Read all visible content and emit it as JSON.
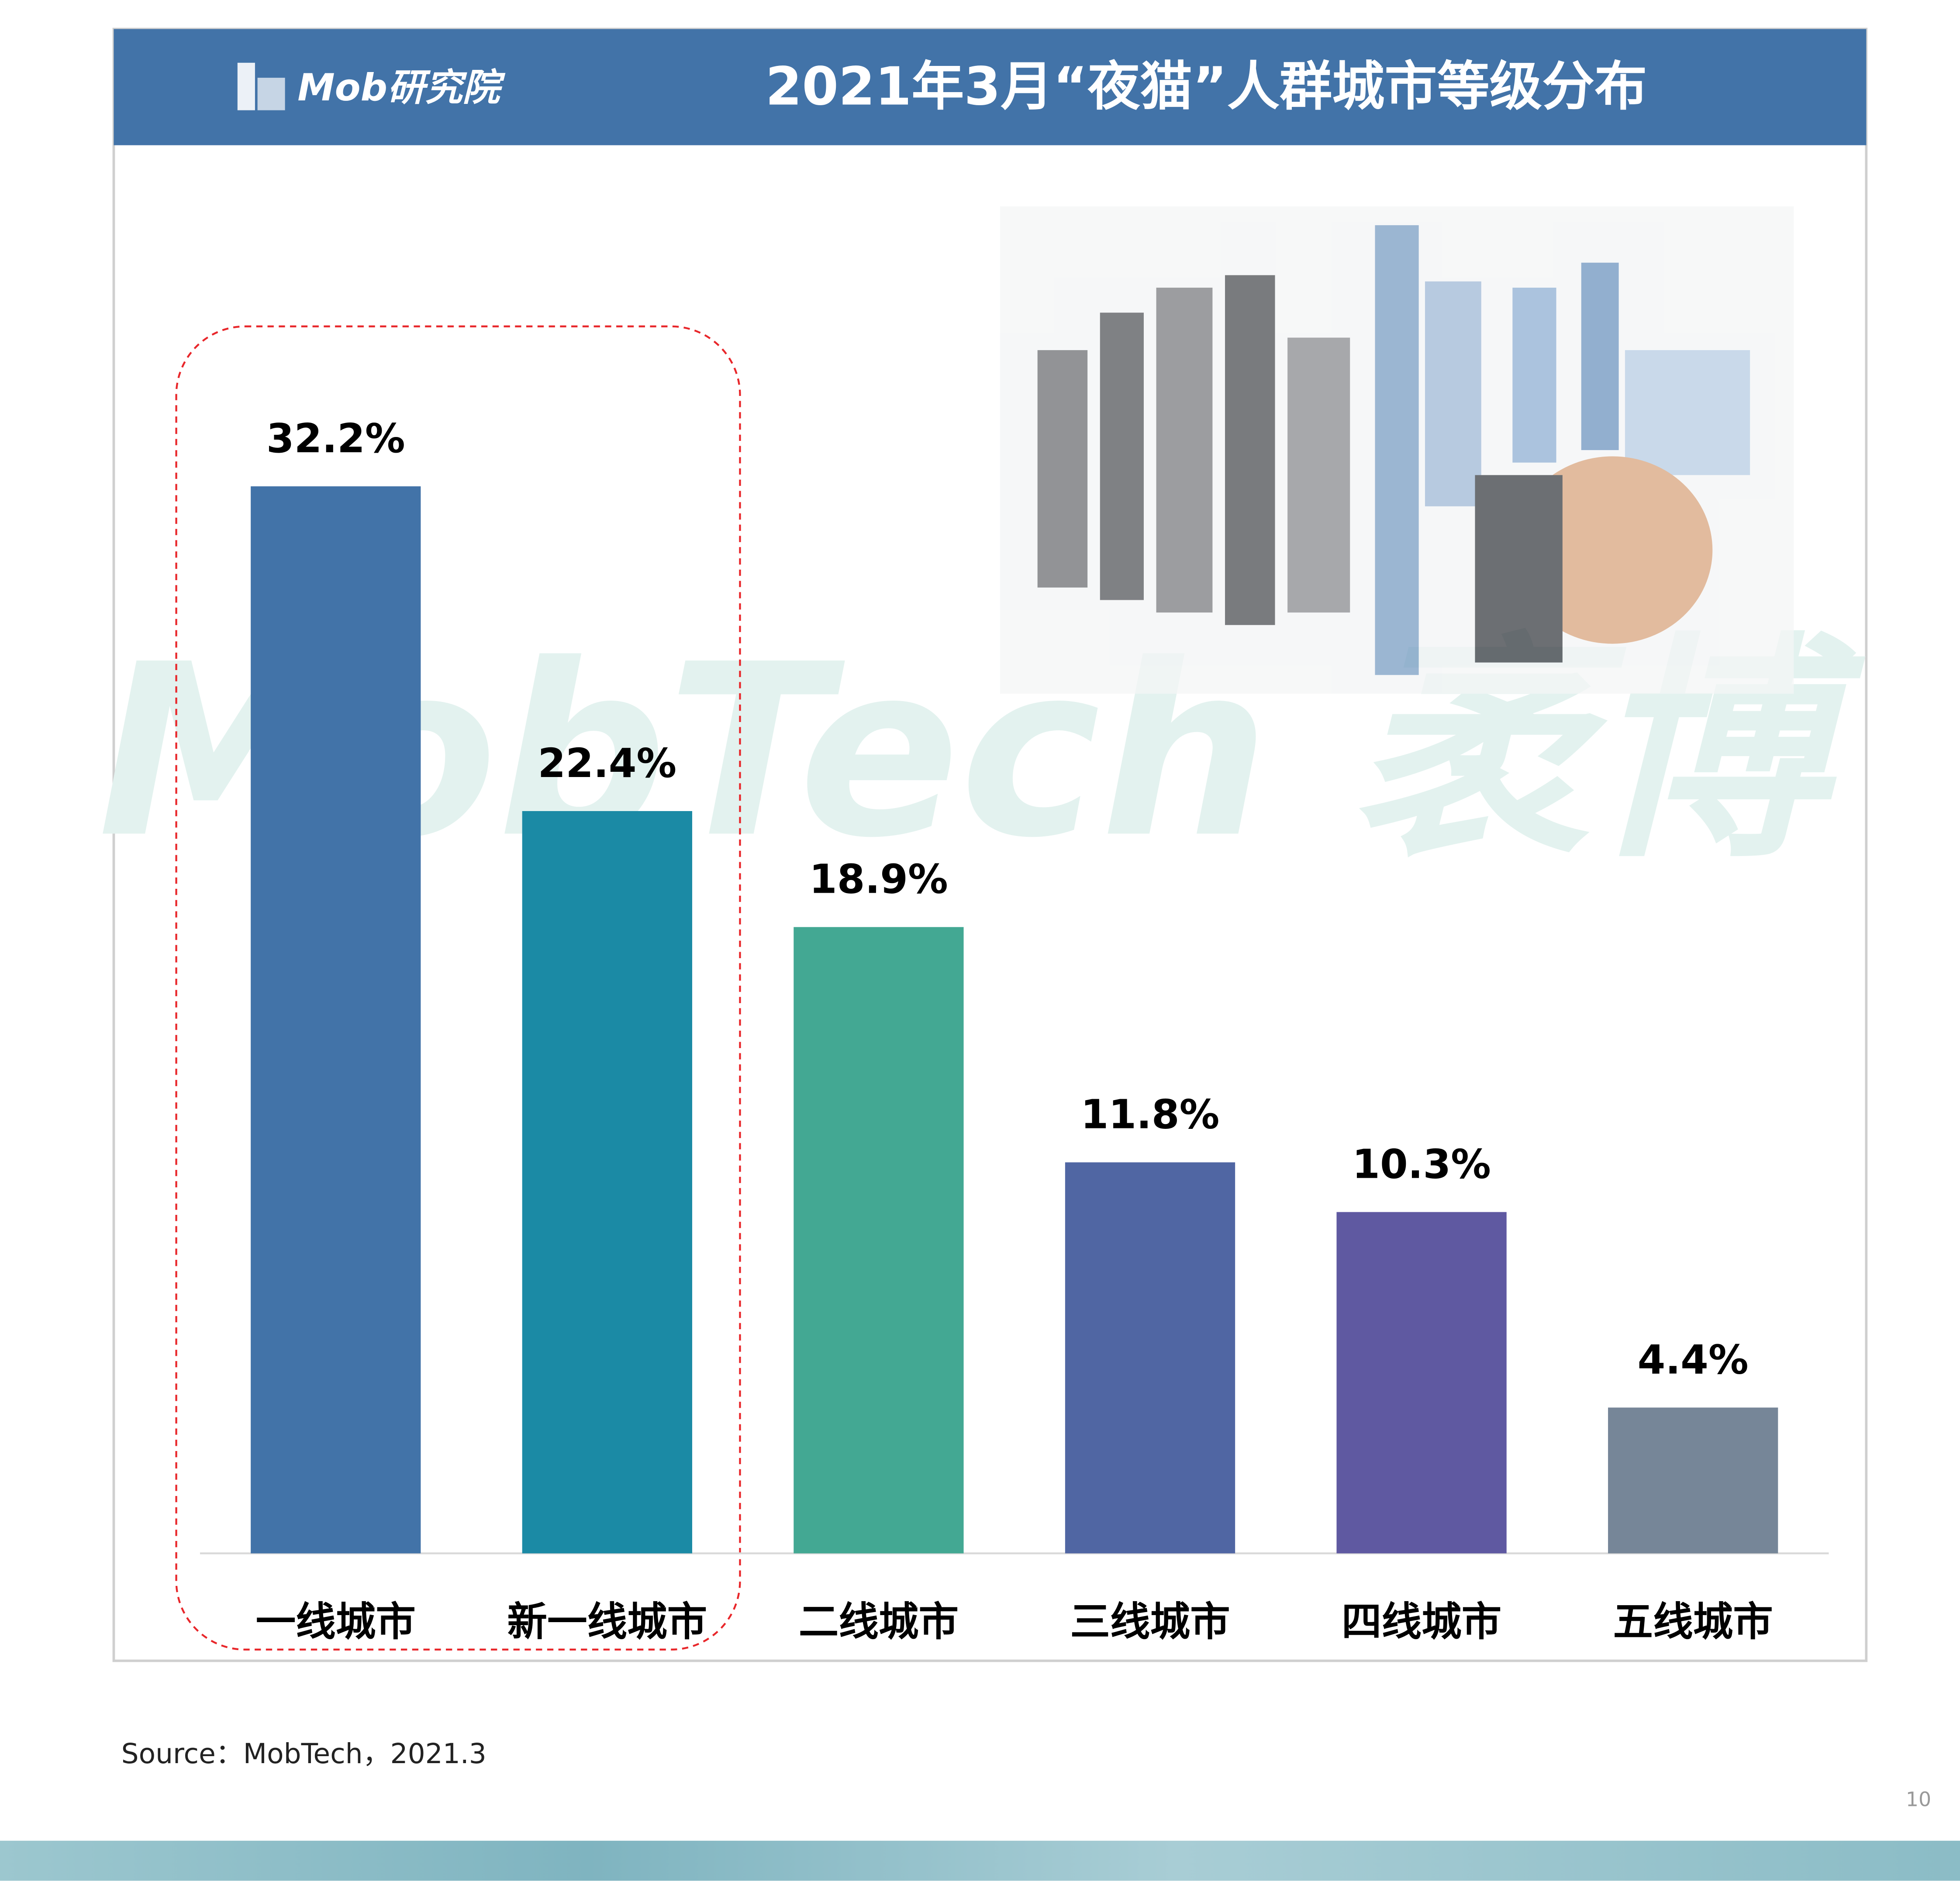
{
  "chart_data": {
    "type": "bar",
    "title": "2021年3月“夜猫”人群城市等级分布",
    "logo": "Mob研究院",
    "watermark": "MobTech 袤博",
    "categories": [
      "一线城市",
      "新一线城市",
      "二线城市",
      "三线城市",
      "四线城市",
      "五线城市"
    ],
    "values": [
      32.2,
      22.4,
      18.9,
      11.8,
      10.3,
      4.4
    ],
    "value_labels": [
      "32.2%",
      "22.4%",
      "18.9%",
      "11.8%",
      "10.3%",
      "4.4%"
    ],
    "colors": [
      "#4273a8",
      "#1b8aa5",
      "#43a893",
      "#5066a3",
      "#5f59a1",
      "#768698"
    ],
    "source": "Source：MobTech，2021.3",
    "page_number": "10"
  }
}
